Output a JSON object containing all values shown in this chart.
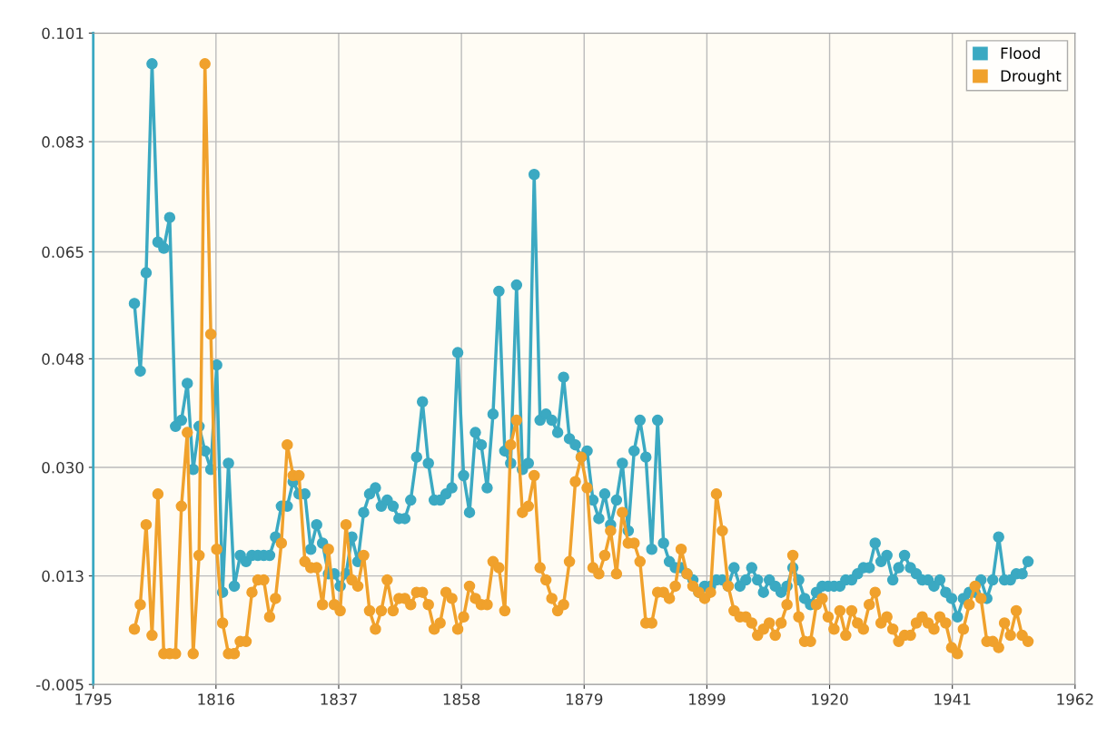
{
  "chart_data": {
    "type": "line",
    "x": [
      1802,
      1803,
      1804,
      1805,
      1806,
      1807,
      1808,
      1809,
      1810,
      1811,
      1812,
      1813,
      1814,
      1815,
      1816,
      1817,
      1818,
      1819,
      1820,
      1821,
      1822,
      1823,
      1824,
      1825,
      1826,
      1827,
      1828,
      1829,
      1830,
      1831,
      1832,
      1833,
      1834,
      1835,
      1836,
      1837,
      1838,
      1839,
      1840,
      1841,
      1842,
      1843,
      1844,
      1845,
      1846,
      1847,
      1848,
      1849,
      1850,
      1851,
      1852,
      1853,
      1854,
      1855,
      1856,
      1857,
      1858,
      1859,
      1860,
      1861,
      1862,
      1863,
      1864,
      1865,
      1866,
      1867,
      1868,
      1869,
      1870,
      1871,
      1872,
      1873,
      1874,
      1875,
      1876,
      1877,
      1878,
      1879,
      1880,
      1881,
      1882,
      1883,
      1884,
      1885,
      1886,
      1887,
      1888,
      1889,
      1890,
      1891,
      1892,
      1893,
      1894,
      1895,
      1896,
      1897,
      1898,
      1899,
      1900,
      1901,
      1902,
      1903,
      1904,
      1905,
      1906,
      1907,
      1908,
      1909,
      1910,
      1911,
      1912,
      1913,
      1914,
      1915,
      1916,
      1917,
      1918,
      1919,
      1920,
      1921,
      1922,
      1923,
      1924,
      1925,
      1926,
      1927,
      1928,
      1929,
      1930,
      1931,
      1932,
      1933,
      1934,
      1935,
      1936,
      1937,
      1938,
      1939,
      1940,
      1941,
      1942,
      1943,
      1944,
      1945,
      1946,
      1947,
      1948,
      1949,
      1950,
      1951,
      1952,
      1953,
      1954
    ],
    "series": [
      {
        "name": "Flood",
        "color": "#3ba9c2",
        "values": [
          0.057,
          0.046,
          0.062,
          0.096,
          0.067,
          0.066,
          0.071,
          0.037,
          0.038,
          0.044,
          0.03,
          0.037,
          0.033,
          0.03,
          0.047,
          0.01,
          0.031,
          0.011,
          0.016,
          0.015,
          0.016,
          0.016,
          0.016,
          0.016,
          0.019,
          0.024,
          0.024,
          0.028,
          0.026,
          0.026,
          0.017,
          0.021,
          0.018,
          0.013,
          0.013,
          0.011,
          0.013,
          0.019,
          0.015,
          0.023,
          0.026,
          0.027,
          0.024,
          0.025,
          0.024,
          0.022,
          0.022,
          0.025,
          0.032,
          0.041,
          0.031,
          0.025,
          0.025,
          0.026,
          0.027,
          0.049,
          0.029,
          0.023,
          0.036,
          0.034,
          0.027,
          0.039,
          0.059,
          0.033,
          0.031,
          0.06,
          0.03,
          0.031,
          0.078,
          0.038,
          0.039,
          0.038,
          0.036,
          0.045,
          0.035,
          0.034,
          0.032,
          0.033,
          0.025,
          0.022,
          0.026,
          0.021,
          0.025,
          0.031,
          0.02,
          0.033,
          0.038,
          0.032,
          0.017,
          0.038,
          0.018,
          0.015,
          0.014,
          0.014,
          0.013,
          0.012,
          0.01,
          0.011,
          0.011,
          0.012,
          0.012,
          0.011,
          0.014,
          0.011,
          0.012,
          0.014,
          0.012,
          0.01,
          0.012,
          0.011,
          0.01,
          0.011,
          0.014,
          0.012,
          0.009,
          0.008,
          0.01,
          0.011,
          0.011,
          0.011,
          0.011,
          0.012,
          0.012,
          0.013,
          0.014,
          0.014,
          0.018,
          0.015,
          0.016,
          0.012,
          0.014,
          0.016,
          0.014,
          0.013,
          0.012,
          0.012,
          0.011,
          0.012,
          0.01,
          0.009,
          0.006,
          0.009,
          0.01,
          0.01,
          0.012,
          0.009,
          0.012,
          0.019,
          0.012,
          0.012,
          0.013,
          0.013,
          0.015
        ]
      },
      {
        "name": "Drought",
        "color": "#f0a12c",
        "values": [
          0.004,
          0.008,
          0.021,
          0.003,
          0.026,
          0.0,
          0.0,
          0.0,
          0.024,
          0.036,
          0.0,
          0.016,
          0.096,
          0.052,
          0.017,
          0.005,
          0.0,
          0.0,
          0.002,
          0.002,
          0.01,
          0.012,
          0.012,
          0.006,
          0.009,
          0.018,
          0.034,
          0.029,
          0.029,
          0.015,
          0.014,
          0.014,
          0.008,
          0.017,
          0.008,
          0.007,
          0.021,
          0.012,
          0.011,
          0.016,
          0.007,
          0.004,
          0.007,
          0.012,
          0.007,
          0.009,
          0.009,
          0.008,
          0.01,
          0.01,
          0.008,
          0.004,
          0.005,
          0.01,
          0.009,
          0.004,
          0.006,
          0.011,
          0.009,
          0.008,
          0.008,
          0.015,
          0.014,
          0.007,
          0.034,
          0.038,
          0.023,
          0.024,
          0.029,
          0.014,
          0.012,
          0.009,
          0.007,
          0.008,
          0.015,
          0.028,
          0.032,
          0.027,
          0.014,
          0.013,
          0.016,
          0.02,
          0.013,
          0.023,
          0.018,
          0.018,
          0.015,
          0.005,
          0.005,
          0.01,
          0.01,
          0.009,
          0.011,
          0.017,
          0.013,
          0.011,
          0.01,
          0.009,
          0.01,
          0.026,
          0.02,
          0.011,
          0.007,
          0.006,
          0.006,
          0.005,
          0.003,
          0.004,
          0.005,
          0.003,
          0.005,
          0.008,
          0.016,
          0.006,
          0.002,
          0.002,
          0.008,
          0.009,
          0.006,
          0.004,
          0.007,
          0.003,
          0.007,
          0.005,
          0.004,
          0.008,
          0.01,
          0.005,
          0.006,
          0.004,
          0.002,
          0.003,
          0.003,
          0.005,
          0.006,
          0.005,
          0.004,
          0.006,
          0.005,
          0.001,
          0.0,
          0.004,
          0.008,
          0.011,
          0.009,
          0.002,
          0.002,
          0.001,
          0.005,
          0.003,
          0.007,
          0.003,
          0.002
        ]
      }
    ],
    "xlim": [
      1795,
      1962
    ],
    "xticks": [
      1795,
      {
        "value": 1815.875,
        "label": "1816"
      },
      {
        "value": 1836.75,
        "label": "1837"
      },
      {
        "value": 1857.625,
        "label": "1858"
      },
      {
        "value": 1878.5,
        "label": "1879"
      },
      {
        "value": 1899.375,
        "label": "1899"
      },
      {
        "value": 1920.25,
        "label": "1920"
      },
      {
        "value": 1941.125,
        "label": "1941"
      },
      1962
    ],
    "ylim": [
      -0.005,
      0.101
    ],
    "yticks": [
      -0.005,
      {
        "value": 0.012667,
        "label": "0.013"
      },
      {
        "value": 0.030333,
        "label": "0.030"
      },
      {
        "value": 0.048,
        "label": "0.048"
      },
      {
        "value": 0.0654,
        "label": "0.065"
      },
      {
        "value": 0.083333,
        "label": "0.083"
      },
      0.101
    ],
    "grid": true,
    "legend": "top right",
    "marker": "circle",
    "line_style": "solid"
  }
}
